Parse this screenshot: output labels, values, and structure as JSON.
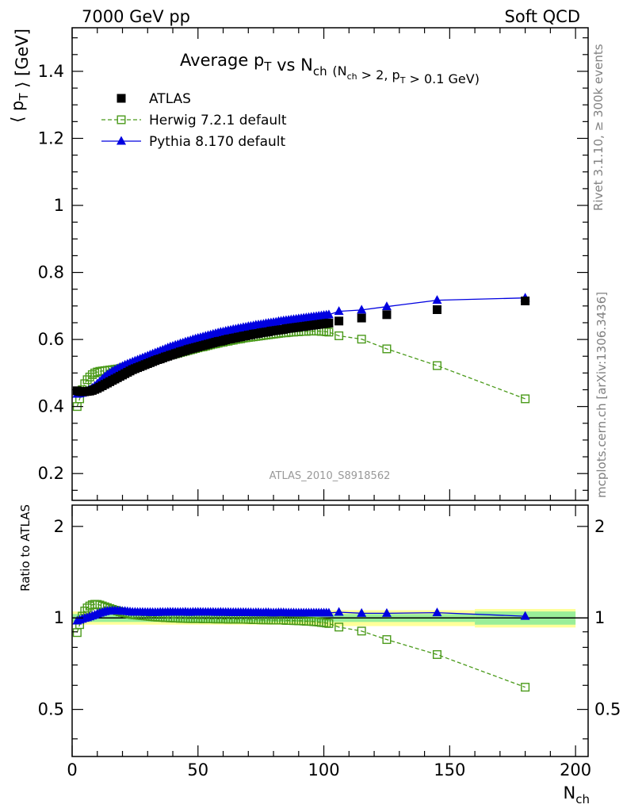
{
  "header": {
    "left": "7000 GeV pp",
    "right": "Soft QCD"
  },
  "side_labels": {
    "rivet": "Rivet 3.1.10, ≥ 300k events",
    "mcplots": "mcplots.cern.ch [arXiv:1306.3436]"
  },
  "watermark": "ATLAS_2010_S8918562",
  "colors": {
    "atlas": "#000000",
    "herwig": "#4a9a1a",
    "pythia": "#0000e0",
    "band_outer": "#ffff99",
    "band_inner": "#99ee99"
  },
  "chart_data": [
    {
      "type": "scatter",
      "title": "Average p_T vs N_ch (N_ch > 2, p_T > 0.1 GeV)",
      "xlabel": "",
      "ylabel": "⟨ p_T ⟩ [GeV]",
      "xlim": [
        0,
        205
      ],
      "ylim": [
        0.12,
        1.53
      ],
      "yticks": [
        0.2,
        0.4,
        0.6,
        0.8,
        1,
        1.2,
        1.4
      ],
      "ytick_labels": [
        "0.2",
        "0.4",
        "0.6",
        "0.8",
        "1",
        "1.2",
        "1.4"
      ],
      "legend_position": "top-left",
      "x": [
        2,
        3,
        4,
        5,
        6,
        7,
        8,
        9,
        10,
        11,
        12,
        13,
        14,
        15,
        16,
        17,
        18,
        19,
        20,
        21,
        22,
        23,
        24,
        25,
        26,
        27,
        28,
        29,
        30,
        31,
        32,
        33,
        34,
        35,
        36,
        37,
        38,
        39,
        40,
        41,
        42,
        43,
        44,
        45,
        46,
        47,
        48,
        49,
        50,
        51,
        52,
        53,
        54,
        55,
        56,
        57,
        58,
        59,
        60,
        61,
        62,
        63,
        64,
        65,
        66,
        67,
        68,
        69,
        70,
        71,
        72,
        73,
        74,
        75,
        76,
        77,
        78,
        79,
        80,
        81,
        82,
        83,
        84,
        85,
        86,
        87,
        88,
        89,
        90,
        91,
        92,
        93,
        94,
        95,
        96,
        97,
        98,
        99,
        100,
        101,
        102,
        106,
        115,
        125,
        145,
        180
      ],
      "series": [
        {
          "name": "ATLAS",
          "marker": "filled-square",
          "values": [
            0.447,
            0.445,
            0.444,
            0.444,
            0.445,
            0.446,
            0.448,
            0.451,
            0.454,
            0.458,
            0.462,
            0.466,
            0.47,
            0.474,
            0.478,
            0.482,
            0.486,
            0.49,
            0.494,
            0.498,
            0.502,
            0.506,
            0.51,
            0.513,
            0.516,
            0.519,
            0.522,
            0.525,
            0.528,
            0.531,
            0.534,
            0.537,
            0.54,
            0.542,
            0.545,
            0.548,
            0.55,
            0.553,
            0.555,
            0.558,
            0.56,
            0.563,
            0.565,
            0.567,
            0.57,
            0.572,
            0.574,
            0.576,
            0.578,
            0.58,
            0.582,
            0.584,
            0.586,
            0.588,
            0.59,
            0.592,
            0.594,
            0.595,
            0.597,
            0.599,
            0.601,
            0.602,
            0.604,
            0.605,
            0.607,
            0.608,
            0.61,
            0.611,
            0.613,
            0.614,
            0.616,
            0.617,
            0.618,
            0.62,
            0.621,
            0.622,
            0.623,
            0.625,
            0.626,
            0.627,
            0.628,
            0.629,
            0.63,
            0.632,
            0.633,
            0.634,
            0.635,
            0.636,
            0.637,
            0.638,
            0.639,
            0.64,
            0.641,
            0.642,
            0.643,
            0.644,
            0.645,
            0.646,
            0.647,
            0.648,
            0.649,
            0.655,
            0.664,
            0.674,
            0.689,
            0.715
          ]
        },
        {
          "name": "Herwig 7.2.1 default",
          "marker": "open-square",
          "line": "dashed",
          "values": [
            0.4,
            0.423,
            0.45,
            0.468,
            0.48,
            0.488,
            0.495,
            0.5,
            0.503,
            0.505,
            0.506,
            0.507,
            0.508,
            0.509,
            0.51,
            0.511,
            0.512,
            0.513,
            0.515,
            0.517,
            0.519,
            0.521,
            0.523,
            0.525,
            0.527,
            0.529,
            0.531,
            0.533,
            0.535,
            0.537,
            0.539,
            0.541,
            0.543,
            0.545,
            0.547,
            0.549,
            0.551,
            0.553,
            0.555,
            0.557,
            0.559,
            0.561,
            0.563,
            0.565,
            0.567,
            0.569,
            0.571,
            0.573,
            0.575,
            0.577,
            0.578,
            0.58,
            0.582,
            0.584,
            0.586,
            0.587,
            0.589,
            0.591,
            0.592,
            0.594,
            0.595,
            0.597,
            0.598,
            0.6,
            0.601,
            0.602,
            0.604,
            0.605,
            0.606,
            0.607,
            0.608,
            0.609,
            0.61,
            0.611,
            0.612,
            0.613,
            0.614,
            0.615,
            0.616,
            0.617,
            0.618,
            0.619,
            0.62,
            0.62,
            0.621,
            0.622,
            0.622,
            0.623,
            0.623,
            0.624,
            0.624,
            0.624,
            0.625,
            0.625,
            0.625,
            0.625,
            0.625,
            0.624,
            0.624,
            0.623,
            0.622,
            0.611,
            0.601,
            0.572,
            0.522,
            0.423
          ]
        },
        {
          "name": "Pythia 8.170 default",
          "marker": "filled-triangle",
          "line": "solid",
          "values": [
            0.437,
            0.438,
            0.44,
            0.443,
            0.446,
            0.45,
            0.455,
            0.461,
            0.468,
            0.475,
            0.482,
            0.489,
            0.495,
            0.5,
            0.505,
            0.509,
            0.513,
            0.517,
            0.52,
            0.524,
            0.527,
            0.53,
            0.533,
            0.536,
            0.539,
            0.542,
            0.545,
            0.548,
            0.551,
            0.554,
            0.557,
            0.56,
            0.563,
            0.566,
            0.569,
            0.572,
            0.575,
            0.578,
            0.58,
            0.583,
            0.585,
            0.588,
            0.59,
            0.593,
            0.595,
            0.597,
            0.6,
            0.602,
            0.604,
            0.606,
            0.608,
            0.61,
            0.612,
            0.614,
            0.616,
            0.618,
            0.62,
            0.622,
            0.623,
            0.625,
            0.627,
            0.628,
            0.63,
            0.631,
            0.633,
            0.634,
            0.636,
            0.637,
            0.639,
            0.64,
            0.641,
            0.643,
            0.644,
            0.645,
            0.646,
            0.648,
            0.649,
            0.65,
            0.651,
            0.652,
            0.654,
            0.655,
            0.656,
            0.657,
            0.658,
            0.659,
            0.66,
            0.661,
            0.662,
            0.663,
            0.664,
            0.665,
            0.666,
            0.667,
            0.668,
            0.669,
            0.67,
            0.671,
            0.672,
            0.673,
            0.674,
            0.684,
            0.688,
            0.698,
            0.717,
            0.724
          ]
        }
      ]
    },
    {
      "type": "scatter",
      "title": "",
      "xlabel": "N_ch",
      "ylabel": "Ratio to ATLAS",
      "xlim": [
        0,
        205
      ],
      "ylim": [
        0.35,
        2.35
      ],
      "ylog": true,
      "yticks": [
        0.5,
        1,
        2
      ],
      "ytick_labels": [
        "0.5",
        "1",
        "2"
      ],
      "xticks": [
        0,
        50,
        100,
        150,
        200
      ],
      "xtick_labels": [
        "0",
        "50",
        "100",
        "150",
        "200"
      ],
      "reference": 1,
      "uncertainty_band": {
        "x": [
          0,
          100,
          160,
          200
        ],
        "stat": [
          0.97,
          1.03,
          0.97,
          1.03,
          0.95,
          1.05
        ],
        "total": [
          0.95,
          1.05,
          0.94,
          1.06,
          0.93,
          1.07
        ]
      }
    }
  ]
}
